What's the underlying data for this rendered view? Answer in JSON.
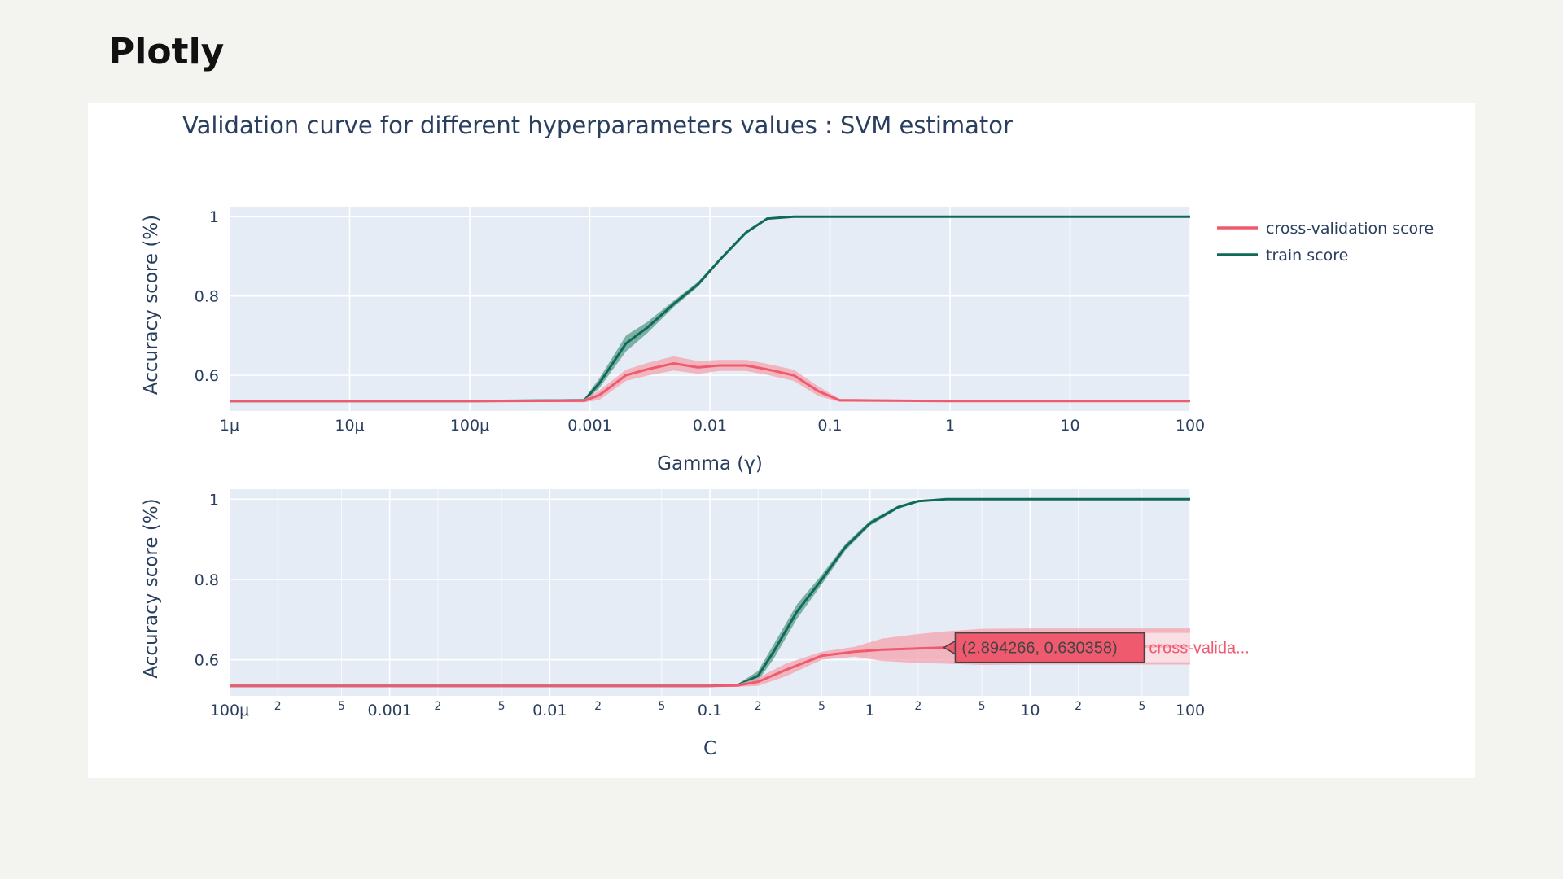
{
  "page": {
    "heading": "Plotly"
  },
  "colors": {
    "train": "#0f6b57",
    "cv": "#ef5a6f",
    "cv_band": "#f4a3ae",
    "train_band": "#5a9c88",
    "plot_bg": "#e5ecf6",
    "hover_bg": "#ef5a6f",
    "hover_border": "#444444"
  },
  "chart_data": {
    "type": "line",
    "title": "Validation curve for different hyperparameters values : SVM estimator",
    "legend": {
      "placement": "top-right",
      "entries": [
        {
          "name": "cross-validation score",
          "color_key": "cv"
        },
        {
          "name": "train score",
          "color_key": "train"
        }
      ]
    },
    "subplots": [
      {
        "xlabel": "Gamma (γ)",
        "ylabel": "Accuracy score (%)",
        "xscale": "log",
        "xlim": [
          1e-06,
          100
        ],
        "ylim": [
          0.51,
          1.025
        ],
        "x_ticks": [
          {
            "value": 1e-06,
            "label": "1μ"
          },
          {
            "value": 1e-05,
            "label": "10μ"
          },
          {
            "value": 0.0001,
            "label": "100μ"
          },
          {
            "value": 0.001,
            "label": "0.001"
          },
          {
            "value": 0.01,
            "label": "0.01"
          },
          {
            "value": 0.1,
            "label": "0.1"
          },
          {
            "value": 1,
            "label": "1"
          },
          {
            "value": 10,
            "label": "10"
          },
          {
            "value": 100,
            "label": "100"
          }
        ],
        "y_ticks": [
          {
            "value": 0.6,
            "label": "0.6"
          },
          {
            "value": 0.8,
            "label": "0.8"
          },
          {
            "value": 1,
            "label": "1"
          }
        ],
        "series": [
          {
            "name": "train score",
            "color_key": "train",
            "x": [
              1e-06,
              1e-05,
              0.0001,
              0.0009,
              0.0012,
              0.002,
              0.003,
              0.005,
              0.008,
              0.012,
              0.02,
              0.03,
              0.05,
              0.1,
              1,
              10,
              100
            ],
            "y": [
              0.535,
              0.535,
              0.535,
              0.537,
              0.58,
              0.68,
              0.72,
              0.78,
              0.83,
              0.89,
              0.96,
              0.995,
              1,
              1,
              1,
              1,
              1
            ],
            "band": [
              0,
              0,
              0,
              0.004,
              0.012,
              0.02,
              0.014,
              0.008,
              0.006,
              0.004,
              0.004,
              0.003,
              0.001,
              0,
              0,
              0,
              0
            ]
          },
          {
            "name": "cross-validation score",
            "color_key": "cv",
            "x": [
              1e-06,
              1e-05,
              0.0001,
              0.0009,
              0.0012,
              0.002,
              0.003,
              0.005,
              0.008,
              0.012,
              0.02,
              0.03,
              0.05,
              0.08,
              0.12,
              1,
              10,
              100
            ],
            "y": [
              0.535,
              0.535,
              0.535,
              0.536,
              0.55,
              0.6,
              0.615,
              0.63,
              0.62,
              0.625,
              0.625,
              0.615,
              0.6,
              0.56,
              0.537,
              0.535,
              0.535,
              0.535
            ],
            "band": [
              0.002,
              0.002,
              0.002,
              0.004,
              0.012,
              0.014,
              0.016,
              0.018,
              0.016,
              0.014,
              0.014,
              0.014,
              0.014,
              0.012,
              0.004,
              0.002,
              0.002,
              0.002
            ]
          }
        ]
      },
      {
        "xlabel": "C",
        "ylabel": "Accuracy score (%)",
        "xscale": "log",
        "xlim": [
          0.0001,
          100
        ],
        "ylim": [
          0.51,
          1.025
        ],
        "x_ticks": [
          {
            "value": 0.0001,
            "label": "100μ"
          },
          {
            "value": 0.001,
            "label": "0.001"
          },
          {
            "value": 0.01,
            "label": "0.01"
          },
          {
            "value": 0.1,
            "label": "0.1"
          },
          {
            "value": 1,
            "label": "1"
          },
          {
            "value": 10,
            "label": "10"
          },
          {
            "value": 100,
            "label": "100"
          }
        ],
        "x_minor_ticks": [
          {
            "value": 0.0002,
            "label": "2"
          },
          {
            "value": 0.0005,
            "label": "5"
          },
          {
            "value": 0.002,
            "label": "2"
          },
          {
            "value": 0.005,
            "label": "5"
          },
          {
            "value": 0.02,
            "label": "2"
          },
          {
            "value": 0.05,
            "label": "5"
          },
          {
            "value": 0.2,
            "label": "2"
          },
          {
            "value": 0.5,
            "label": "5"
          },
          {
            "value": 2,
            "label": "2"
          },
          {
            "value": 5,
            "label": "5"
          },
          {
            "value": 20,
            "label": "2"
          },
          {
            "value": 50,
            "label": "5"
          }
        ],
        "y_ticks": [
          {
            "value": 0.6,
            "label": "0.6"
          },
          {
            "value": 0.8,
            "label": "0.8"
          },
          {
            "value": 1,
            "label": "1"
          }
        ],
        "series": [
          {
            "name": "train score",
            "color_key": "train",
            "x": [
              0.0001,
              0.001,
              0.01,
              0.1,
              0.15,
              0.2,
              0.25,
              0.35,
              0.5,
              0.7,
              1,
              1.5,
              2,
              3,
              5,
              10,
              100
            ],
            "y": [
              0.535,
              0.535,
              0.535,
              0.535,
              0.537,
              0.56,
              0.62,
              0.72,
              0.8,
              0.88,
              0.94,
              0.98,
              0.995,
              1,
              1,
              1,
              1
            ],
            "band": [
              0,
              0,
              0,
              0,
              0.003,
              0.012,
              0.018,
              0.018,
              0.012,
              0.008,
              0.006,
              0.004,
              0.003,
              0.001,
              0,
              0,
              0
            ]
          },
          {
            "name": "cross-validation score",
            "color_key": "cv",
            "x": [
              0.0001,
              0.001,
              0.01,
              0.1,
              0.15,
              0.2,
              0.3,
              0.5,
              0.8,
              1.2,
              2,
              2.894266,
              5,
              10,
              100
            ],
            "y": [
              0.535,
              0.535,
              0.535,
              0.535,
              0.536,
              0.545,
              0.575,
              0.61,
              0.62,
              0.625,
              0.628,
              0.630358,
              0.632,
              0.633,
              0.633
            ],
            "band": [
              0.002,
              0.002,
              0.002,
              0.002,
              0.003,
              0.01,
              0.016,
              0.01,
              0.012,
              0.028,
              0.036,
              0.04,
              0.045,
              0.045,
              0.045
            ]
          }
        ],
        "hover": {
          "series": "cross-validation score",
          "x": 2.894266,
          "y": 0.630358,
          "value_text": "(2.894266, 0.630358)",
          "name_text": "cross-valida..."
        }
      }
    ]
  }
}
